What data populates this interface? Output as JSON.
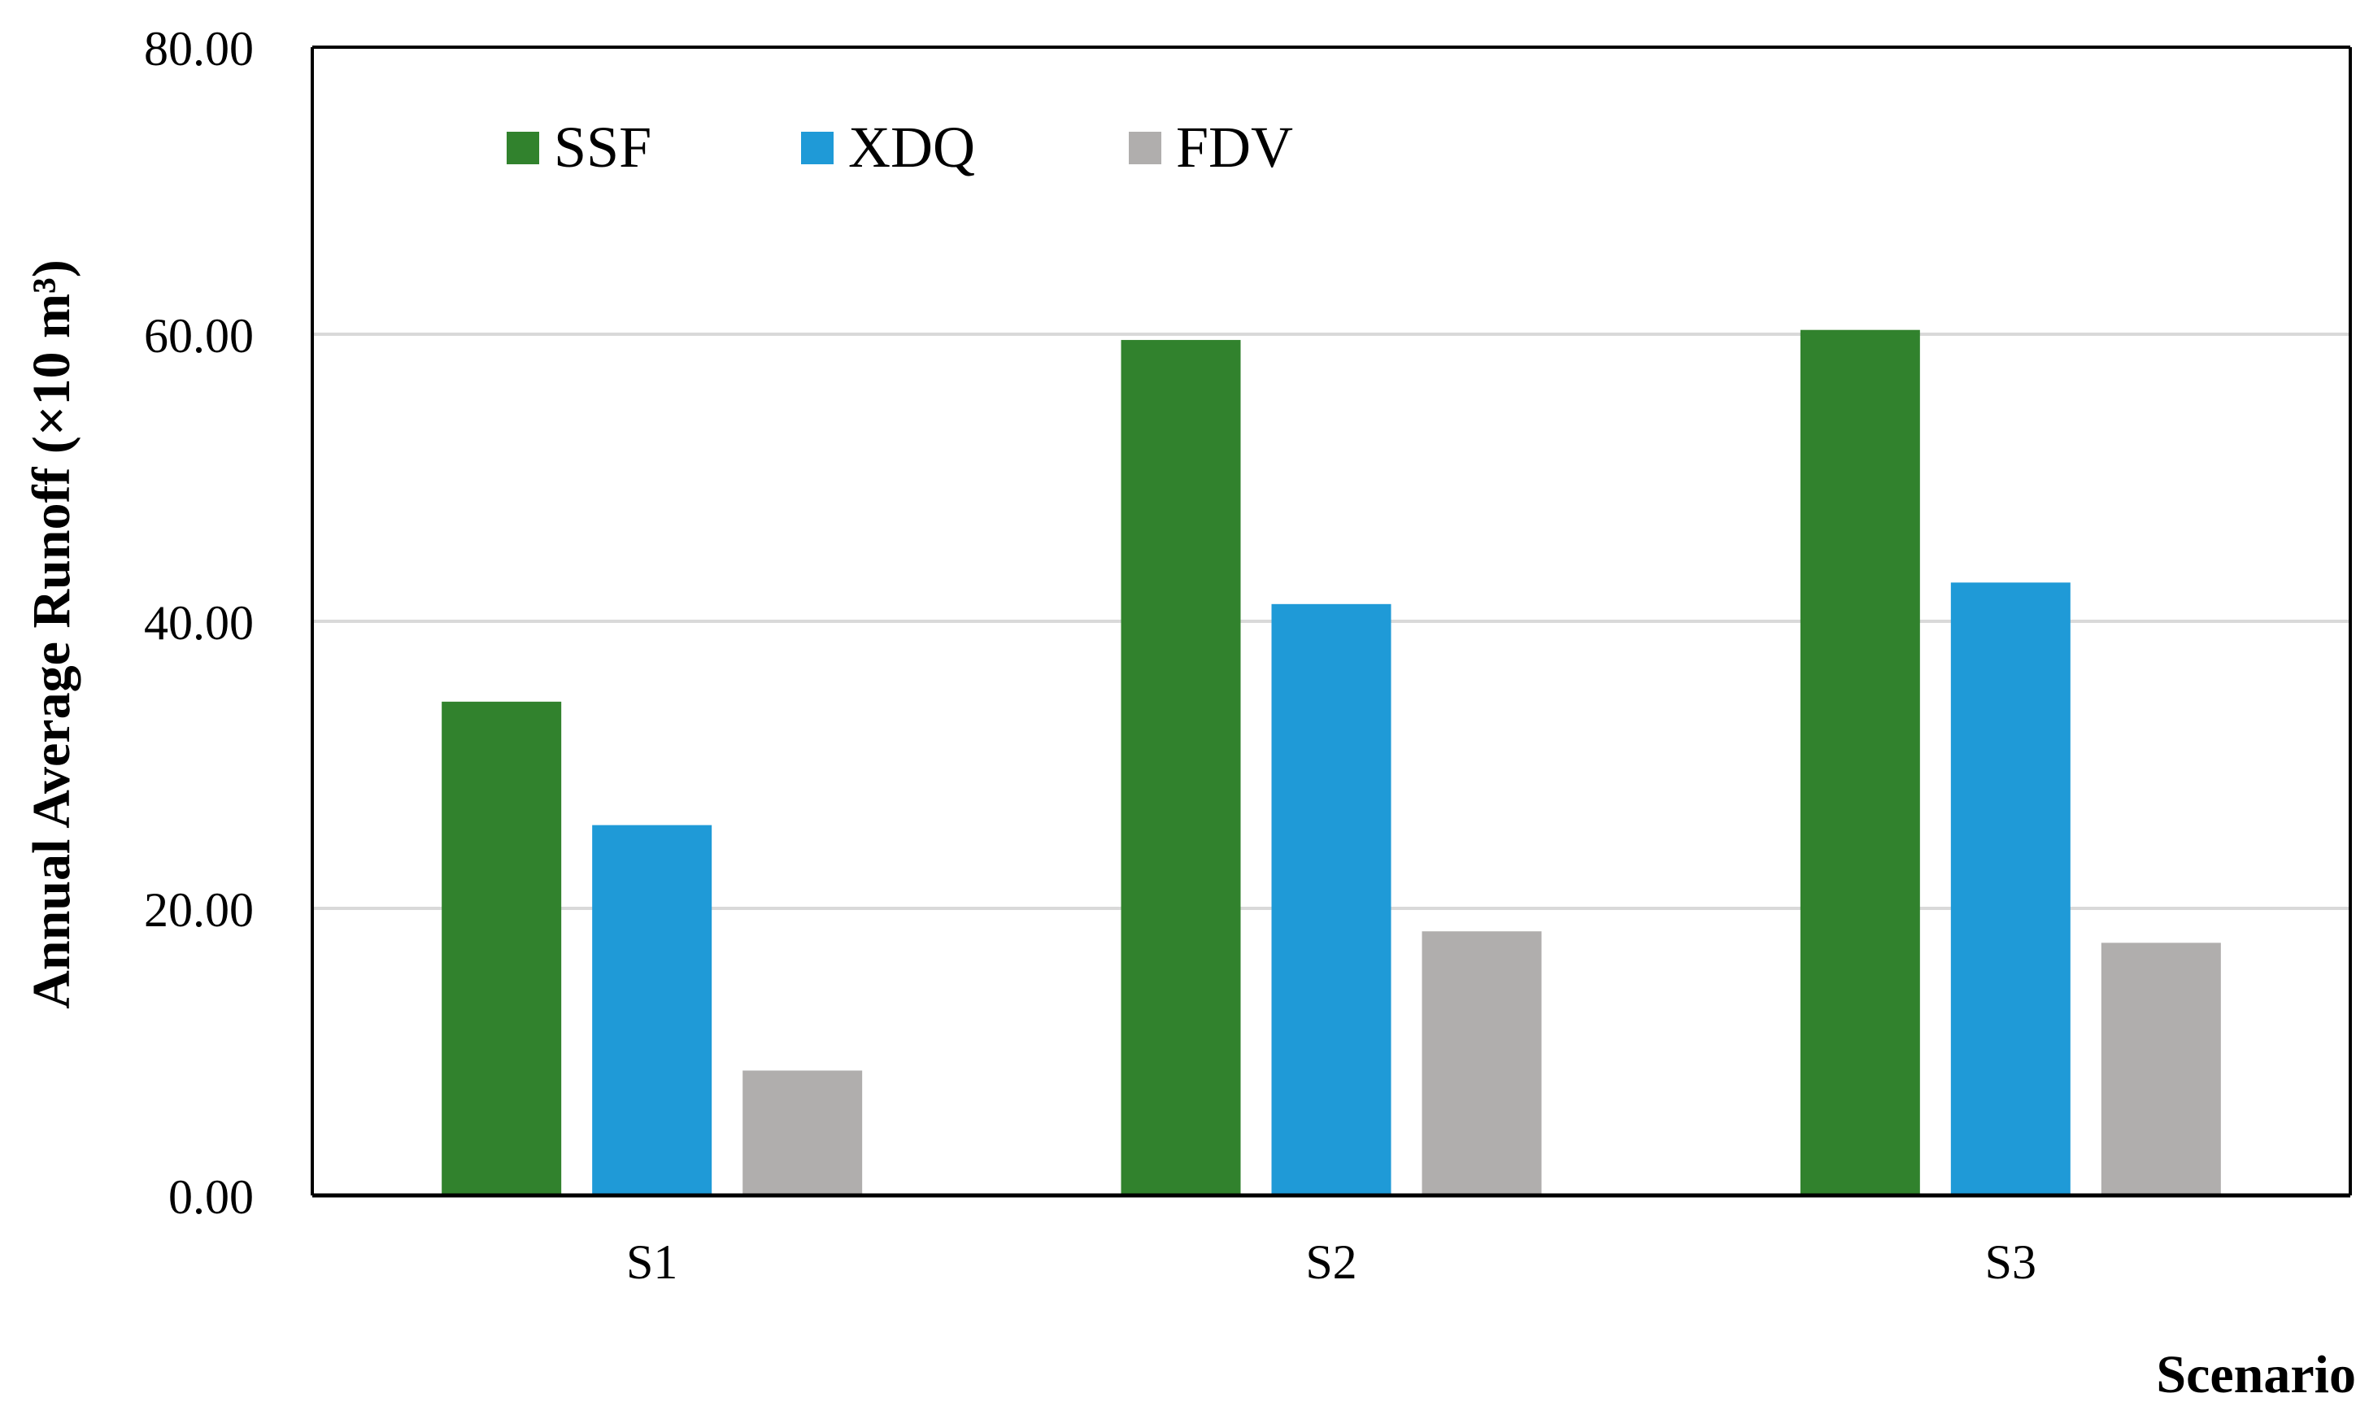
{
  "chart_data": {
    "type": "bar",
    "title": "",
    "xlabel": "Scenario",
    "ylabel": "Annual Average Runoff (×10 m³)",
    "categories": [
      "S1",
      "S2",
      "S3"
    ],
    "series": [
      {
        "name": "SSF",
        "color": "#31822d",
        "values": [
          34.4,
          59.6,
          60.3
        ]
      },
      {
        "name": "XDQ",
        "color": "#1f9ad7",
        "values": [
          25.8,
          41.2,
          42.7
        ]
      },
      {
        "name": "FDV",
        "color": "#b0aead",
        "values": [
          8.7,
          18.4,
          17.6
        ]
      }
    ],
    "ylim": [
      0,
      80
    ],
    "yticks": [
      0,
      20,
      40,
      60,
      80
    ],
    "ytick_labels": [
      "0.00",
      "20.00",
      "40.00",
      "60.00",
      "80.00"
    ],
    "grid": true,
    "legend_position": "top-left",
    "axis_color": "#000000",
    "grid_color": "#d9d9d9"
  }
}
